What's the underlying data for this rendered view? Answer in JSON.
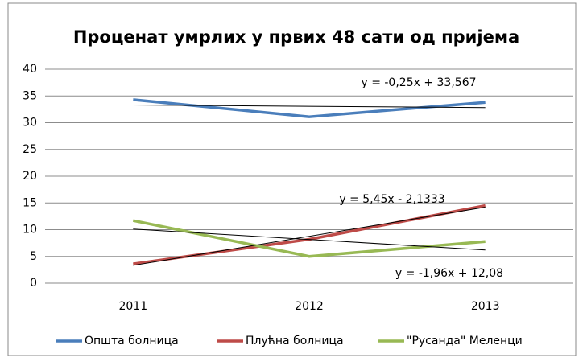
{
  "chart_data": {
    "type": "line",
    "title": "Проценат  умрлих у првих 48 сати од пријема",
    "categories": [
      "2011",
      "2012",
      "2013"
    ],
    "series": [
      {
        "name": "Општа болница",
        "color": "#4a7ebb",
        "values": [
          34.3,
          31.1,
          33.8
        ]
      },
      {
        "name": "Плућна болница",
        "color": "#be4b48",
        "values": [
          3.6,
          8.2,
          14.5
        ]
      },
      {
        "name": "\"Русанда\" Меленци",
        "color": "#98b954",
        "values": [
          11.7,
          5.0,
          7.78
        ]
      }
    ],
    "trendlines": [
      {
        "slope": -0.25,
        "intercept": 33.567,
        "label": "y = -0,25x + 33,567"
      },
      {
        "slope": 5.45,
        "intercept": -2.1333,
        "label": "y = 5,45x - 2,1333"
      },
      {
        "slope": -1.96,
        "intercept": 12.08,
        "label": "y = -1,96x + 12,08"
      }
    ],
    "ylim": [
      0,
      40
    ],
    "yticks": [
      0,
      5,
      10,
      15,
      20,
      25,
      30,
      35,
      40
    ],
    "grid": true,
    "legend": "bottom"
  }
}
